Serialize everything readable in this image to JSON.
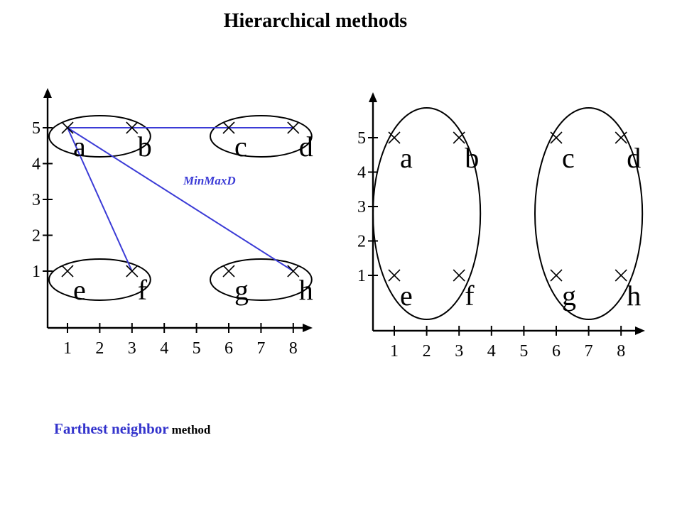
{
  "title": "Hierarchical methods",
  "caption": {
    "emphasis": "Farthest neighbor",
    "rest": "method"
  },
  "annotation": "MinMaxD",
  "x_ticks": [
    "1",
    "2",
    "3",
    "4",
    "5",
    "6",
    "7",
    "8"
  ],
  "y_ticks": [
    "1",
    "2",
    "3",
    "4",
    "5"
  ],
  "points": [
    {
      "label": "a",
      "x": 1,
      "y": 5
    },
    {
      "label": "b",
      "x": 3,
      "y": 5
    },
    {
      "label": "c",
      "x": 6,
      "y": 5
    },
    {
      "label": "d",
      "x": 8,
      "y": 5
    },
    {
      "label": "e",
      "x": 1,
      "y": 1
    },
    {
      "label": "f",
      "x": 3,
      "y": 1
    },
    {
      "label": "g",
      "x": 6,
      "y": 1
    },
    {
      "label": "h",
      "x": 8,
      "y": 1
    }
  ],
  "left_clusters": [
    [
      "a",
      "b"
    ],
    [
      "c",
      "d"
    ],
    [
      "e",
      "f"
    ],
    [
      "g",
      "h"
    ]
  ],
  "left_links": [
    [
      "a",
      "d"
    ],
    [
      "a",
      "f"
    ],
    [
      "a",
      "h"
    ]
  ],
  "right_clusters": [
    [
      "a",
      "b",
      "e",
      "f"
    ],
    [
      "c",
      "d",
      "g",
      "h"
    ]
  ],
  "colors": {
    "link": "#3b3bd6",
    "caption": "#3333cc"
  }
}
